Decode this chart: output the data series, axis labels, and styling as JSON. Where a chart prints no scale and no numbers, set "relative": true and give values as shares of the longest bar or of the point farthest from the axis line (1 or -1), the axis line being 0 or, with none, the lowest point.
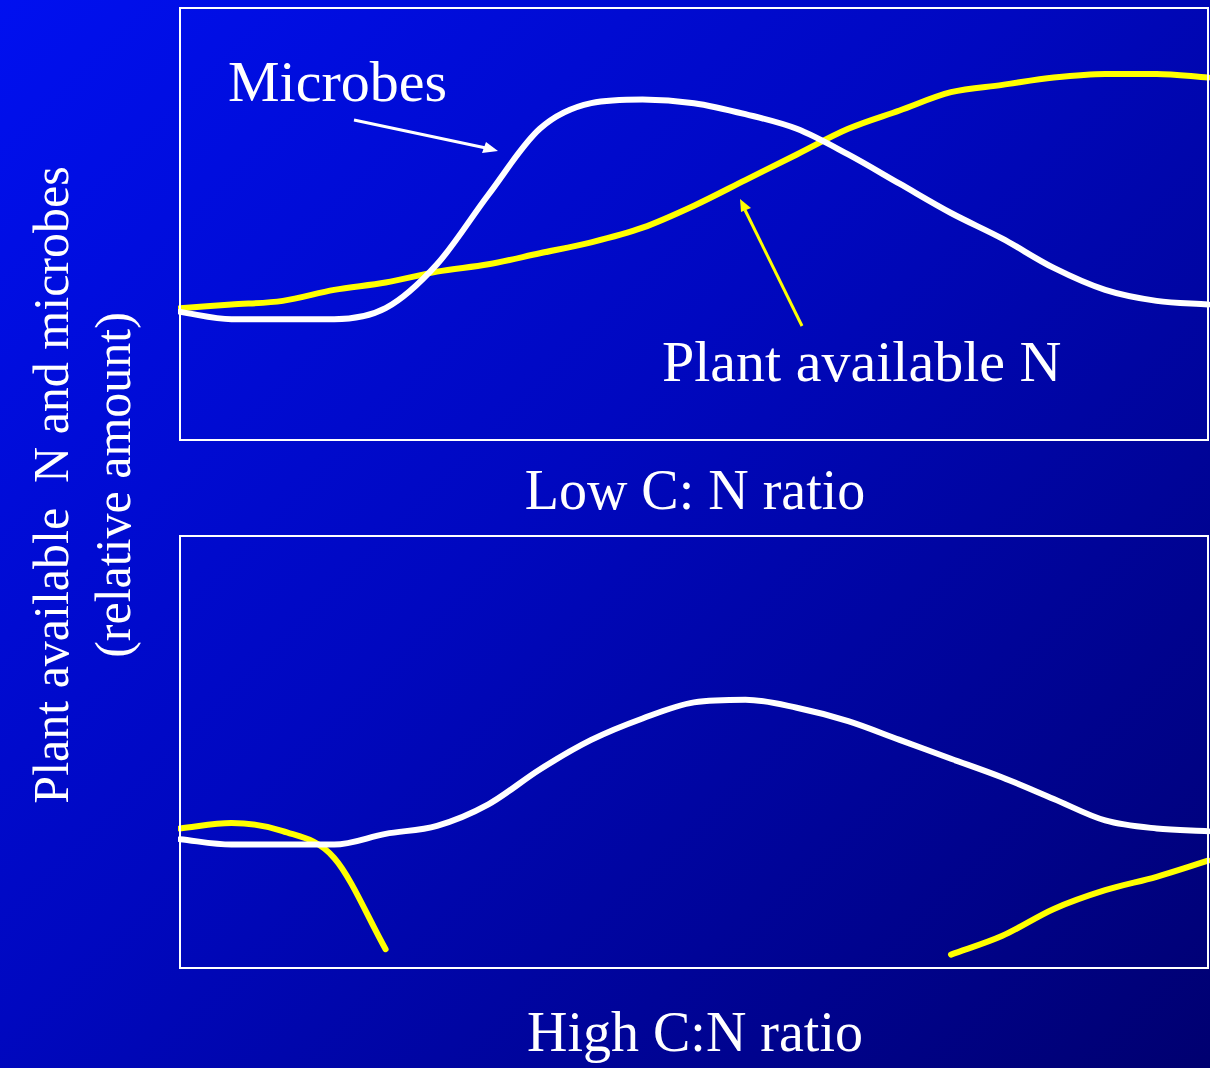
{
  "chart_data": [
    {
      "type": "line",
      "relative": true,
      "xlabel": "Low C: N ratio",
      "ylabel": "Plant available  N and microbes\n(relative amount)",
      "categories": [
        null,
        null,
        null,
        null,
        null,
        null,
        null,
        null,
        null,
        null,
        null,
        null,
        null,
        null,
        null,
        null,
        null,
        null,
        null,
        null,
        null
      ],
      "series": [
        {
          "name": "Microbes",
          "color": "#ffffff",
          "values": [
            0.35,
            0.33,
            0.33,
            0.33,
            0.36,
            0.48,
            0.67,
            0.85,
            0.92,
            0.93,
            0.92,
            0.89,
            0.85,
            0.78,
            0.7,
            0.62,
            0.55,
            0.47,
            0.41,
            0.38,
            0.37
          ]
        },
        {
          "name": "Plant available N",
          "color": "#ffff00",
          "values": [
            0.36,
            0.37,
            0.38,
            0.41,
            0.43,
            0.46,
            0.48,
            0.51,
            0.54,
            0.58,
            0.64,
            0.71,
            0.78,
            0.85,
            0.9,
            0.95,
            0.97,
            0.99,
            1.0,
            1.0,
            0.99
          ]
        }
      ]
    },
    {
      "type": "line",
      "relative": true,
      "xlabel": "High C:N ratio",
      "categories": [
        null,
        null,
        null,
        null,
        null,
        null,
        null,
        null,
        null,
        null,
        null,
        null,
        null,
        null,
        null,
        null,
        null,
        null,
        null,
        null,
        null
      ],
      "series": [
        {
          "color": "#ffffff",
          "values": [
            0.48,
            0.46,
            0.46,
            0.46,
            0.5,
            0.53,
            0.61,
            0.74,
            0.85,
            0.93,
            0.99,
            1.0,
            0.97,
            0.92,
            0.85,
            0.78,
            0.71,
            0.63,
            0.55,
            0.52,
            0.51
          ]
        },
        {
          "color": "#ffff00",
          "values": [
            0.52,
            0.54,
            0.51,
            0.41,
            0.07,
            null,
            null,
            null,
            null,
            null,
            null,
            null,
            null,
            null,
            null,
            0.05,
            0.12,
            0.22,
            0.29,
            0.34,
            0.4
          ]
        }
      ]
    }
  ]
}
